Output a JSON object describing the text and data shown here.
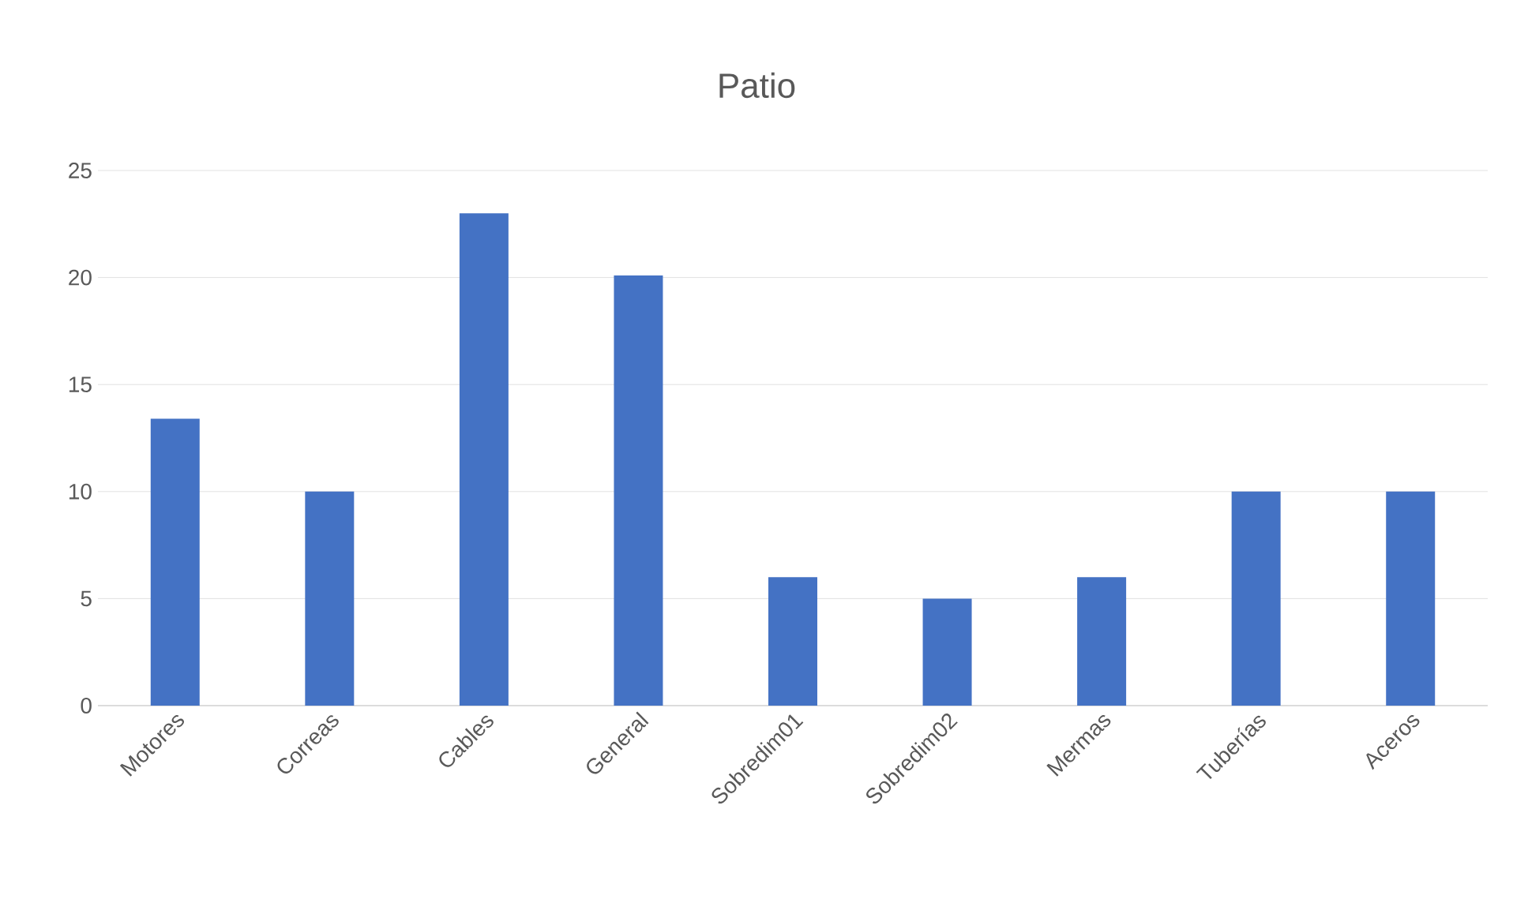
{
  "chart_data": {
    "type": "bar",
    "title": "Patio",
    "categories": [
      "Motores",
      "Correas",
      "Cables",
      "General",
      "Sobredim01",
      "Sobredim02",
      "Mermas",
      "Tuberías",
      "Aceros"
    ],
    "values": [
      13.4,
      10,
      23,
      20.1,
      6,
      5,
      6,
      10,
      10
    ],
    "color": "#4472c4",
    "ylim": [
      0,
      25
    ],
    "yticks": [
      0,
      5,
      10,
      15,
      20,
      25
    ],
    "grid": "y"
  }
}
